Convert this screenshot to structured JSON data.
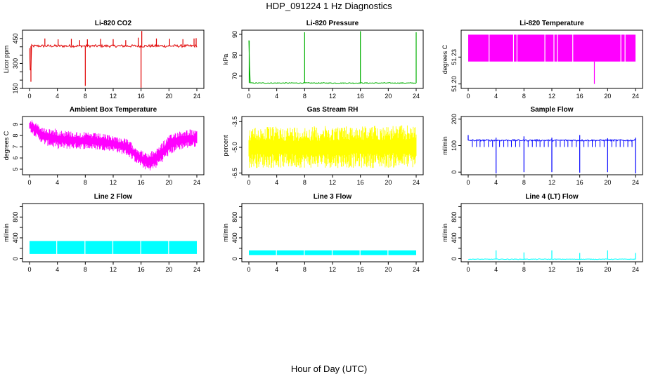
{
  "figure": {
    "title": "HDP_091224  1 Hz Diagnostics",
    "xlabel": "Hour of Day (UTC)"
  },
  "chart_data": [
    {
      "type": "line",
      "title": "Li-820 CO2",
      "ylabel": "Licor ppm",
      "xlim": [
        0,
        24
      ],
      "ylim": [
        150,
        500
      ],
      "xticks": [
        0,
        4,
        8,
        12,
        16,
        20,
        24
      ],
      "yticks": [
        150,
        200,
        250,
        300,
        350,
        400,
        450
      ],
      "ytick_labels": [
        "150",
        "",
        "",
        "300",
        "",
        "",
        "450"
      ],
      "color": "#e00000",
      "baseline": 405,
      "noise": 8,
      "points": [
        [
          0,
          390
        ],
        [
          0.15,
          200
        ],
        [
          0.3,
          395
        ],
        [
          24,
          370
        ]
      ],
      "spikes_up": [
        [
          2.2,
          450
        ],
        [
          4.1,
          445
        ],
        [
          6.0,
          448
        ],
        [
          7.2,
          440
        ],
        [
          8.3,
          445
        ],
        [
          10.2,
          448
        ],
        [
          12.0,
          446
        ],
        [
          13.8,
          440
        ],
        [
          15.6,
          455
        ],
        [
          16.1,
          495
        ],
        [
          18.2,
          450
        ],
        [
          20.1,
          448
        ],
        [
          22.0,
          446
        ],
        [
          23.6,
          450
        ],
        [
          23.9,
          452
        ]
      ],
      "spikes_down": [
        [
          8.0,
          165
        ],
        [
          16.0,
          150
        ],
        [
          0.2,
          190
        ]
      ]
    },
    {
      "type": "line",
      "title": "Li-820 Pressure",
      "ylabel": "kPa",
      "xlim": [
        0,
        24
      ],
      "ylim": [
        64,
        92
      ],
      "xticks": [
        0,
        4,
        8,
        12,
        16,
        20,
        24
      ],
      "yticks": [
        70,
        80,
        90
      ],
      "ytick_labels": [
        "70",
        "80",
        "90"
      ],
      "color": "#00b000",
      "baseline": 66.6,
      "noise": 0.2,
      "points": [
        [
          0,
          87
        ],
        [
          0.1,
          75
        ],
        [
          0.2,
          66.8
        ],
        [
          24,
          66.8
        ]
      ],
      "spikes_up": [
        [
          0.05,
          87
        ],
        [
          8.0,
          91
        ],
        [
          16.0,
          91.5
        ],
        [
          24.0,
          91
        ]
      ],
      "spikes_down": []
    },
    {
      "type": "line",
      "title": "Li-820 Temperature",
      "ylabel": "degrees C",
      "xlim": [
        0,
        24
      ],
      "ylim": [
        51.195,
        51.26
      ],
      "xticks": [
        0,
        4,
        8,
        12,
        16,
        20,
        24
      ],
      "yticks": [
        51.2,
        51.23
      ],
      "ytick_labels": [
        "51.20",
        "51.23"
      ],
      "color": "#ff00ff",
      "band": [
        51.225,
        51.255
      ],
      "gaps": [
        3.0,
        6.5,
        7.0,
        11.0,
        12.3,
        12.8,
        15.0,
        21.9,
        22.5
      ],
      "spikes_down": [
        [
          18.1,
          51.2
        ]
      ]
    },
    {
      "type": "line",
      "title": "Ambient Box Temperature",
      "ylabel": "degrees C",
      "xlim": [
        0,
        24
      ],
      "ylim": [
        4.5,
        9.7
      ],
      "xticks": [
        0,
        4,
        8,
        12,
        16,
        20,
        24
      ],
      "yticks": [
        5,
        6,
        7,
        8,
        9
      ],
      "ytick_labels": [
        "5",
        "6",
        "7",
        "8",
        "9"
      ],
      "color": "#ff00ff",
      "upper": [
        [
          0,
          9.5
        ],
        [
          2,
          8.7
        ],
        [
          4,
          8.6
        ],
        [
          6,
          8.4
        ],
        [
          8,
          8.3
        ],
        [
          10,
          8.2
        ],
        [
          12,
          8.0
        ],
        [
          14,
          7.7
        ],
        [
          15,
          7.2
        ],
        [
          16,
          6.7
        ],
        [
          17,
          6.4
        ],
        [
          18,
          6.8
        ],
        [
          19,
          7.4
        ],
        [
          20,
          8.0
        ],
        [
          21,
          8.4
        ],
        [
          22,
          8.5
        ],
        [
          23,
          8.6
        ],
        [
          24,
          8.4
        ]
      ],
      "lower": [
        [
          0,
          8.4
        ],
        [
          2,
          7.2
        ],
        [
          4,
          6.8
        ],
        [
          6,
          6.8
        ],
        [
          8,
          6.8
        ],
        [
          10,
          6.7
        ],
        [
          12,
          6.6
        ],
        [
          14,
          6.2
        ],
        [
          15,
          5.7
        ],
        [
          16,
          5.2
        ],
        [
          17,
          4.8
        ],
        [
          18,
          5.0
        ],
        [
          19,
          5.6
        ],
        [
          20,
          6.2
        ],
        [
          21,
          6.6
        ],
        [
          22,
          6.8
        ],
        [
          23,
          6.9
        ],
        [
          24,
          7.0
        ]
      ]
    },
    {
      "type": "line",
      "title": "Gas Stream RH",
      "ylabel": "percent",
      "xlim": [
        0,
        24
      ],
      "ylim": [
        -6.6,
        -3.2
      ],
      "xticks": [
        0,
        4,
        8,
        12,
        16,
        20,
        24
      ],
      "yticks": [
        -6.5,
        -5.0,
        -3.5
      ],
      "ytick_labels": [
        "-6.5",
        "-5.0",
        "-3.5"
      ],
      "color": "#ffff00",
      "upper": [
        [
          0,
          -3.8
        ],
        [
          24,
          -3.7
        ]
      ],
      "lower": [
        [
          0,
          -6.2
        ],
        [
          24,
          -6.2
        ]
      ],
      "noise": 0.18
    },
    {
      "type": "line",
      "title": "Sample Flow",
      "ylabel": "ml/min",
      "xlim": [
        0,
        24
      ],
      "ylim": [
        -10,
        210
      ],
      "xticks": [
        0,
        4,
        8,
        12,
        16,
        20,
        24
      ],
      "yticks": [
        0,
        100,
        200
      ],
      "ytick_labels": [
        "0",
        "100",
        "200"
      ],
      "color": "#0000ff",
      "baseline": 120,
      "noise": 3,
      "spikes_up": [
        [
          0,
          140
        ],
        [
          4,
          130
        ],
        [
          8,
          135
        ],
        [
          12,
          130
        ],
        [
          16,
          140
        ],
        [
          20,
          128
        ],
        [
          24,
          130
        ]
      ],
      "spikes_down": [
        [
          4.0,
          -5
        ],
        [
          8.0,
          0
        ],
        [
          12.0,
          0
        ],
        [
          16.0,
          -2
        ],
        [
          20.0,
          0
        ],
        [
          24.0,
          -5
        ]
      ],
      "dips": [
        0.6,
        1.2,
        1.7,
        2.3,
        2.9,
        3.5,
        4.5,
        5.1,
        5.7,
        6.2,
        6.8,
        7.4,
        8.6,
        9.2,
        9.8,
        10.3,
        10.9,
        11.5,
        12.6,
        13.2,
        13.8,
        14.3,
        14.9,
        15.5,
        16.6,
        17.2,
        17.8,
        18.3,
        18.9,
        19.5,
        20.6,
        21.2,
        21.8,
        22.3,
        22.9,
        23.5
      ]
    },
    {
      "type": "line",
      "title": "Line 2 Flow",
      "ylabel": "ml/min",
      "xlim": [
        0,
        24
      ],
      "ylim": [
        -60,
        1060
      ],
      "xticks": [
        0,
        4,
        8,
        12,
        16,
        20,
        24
      ],
      "yticks": [
        0,
        200,
        400,
        600,
        800,
        1000
      ],
      "ytick_labels": [
        "0",
        "",
        "400",
        "",
        "800",
        ""
      ],
      "color": "#00ffff",
      "band": [
        90,
        340
      ],
      "gaps": [
        3.9,
        7.95,
        11.95,
        15.95,
        19.95
      ]
    },
    {
      "type": "line",
      "title": "Line 3 Flow",
      "ylabel": "ml/min",
      "xlim": [
        0,
        24
      ],
      "ylim": [
        -60,
        1060
      ],
      "xticks": [
        0,
        4,
        8,
        12,
        16,
        20,
        24
      ],
      "yticks": [
        0,
        200,
        400,
        600,
        800,
        1000
      ],
      "ytick_labels": [
        "0",
        "",
        "400",
        "",
        "800",
        ""
      ],
      "color": "#00ffff",
      "band": [
        70,
        160
      ],
      "gaps": [
        3.95,
        7.95,
        11.95,
        15.95,
        19.95
      ]
    },
    {
      "type": "line",
      "title": "Line 4 (LT) Flow",
      "ylabel": "ml/min",
      "xlim": [
        0,
        24
      ],
      "ylim": [
        -60,
        1060
      ],
      "xticks": [
        0,
        4,
        8,
        12,
        16,
        20,
        24
      ],
      "yticks": [
        0,
        200,
        400,
        600,
        800,
        1000
      ],
      "ytick_labels": [
        "0",
        "",
        "400",
        "",
        "800",
        ""
      ],
      "color": "#00ffff",
      "baseline": -10,
      "noise": 6,
      "spikes_up": [
        [
          4.0,
          160
        ],
        [
          8.0,
          120
        ],
        [
          12.0,
          160
        ],
        [
          16.0,
          110
        ],
        [
          20.0,
          160
        ],
        [
          24.0,
          110
        ]
      ],
      "spikes_down": []
    }
  ]
}
